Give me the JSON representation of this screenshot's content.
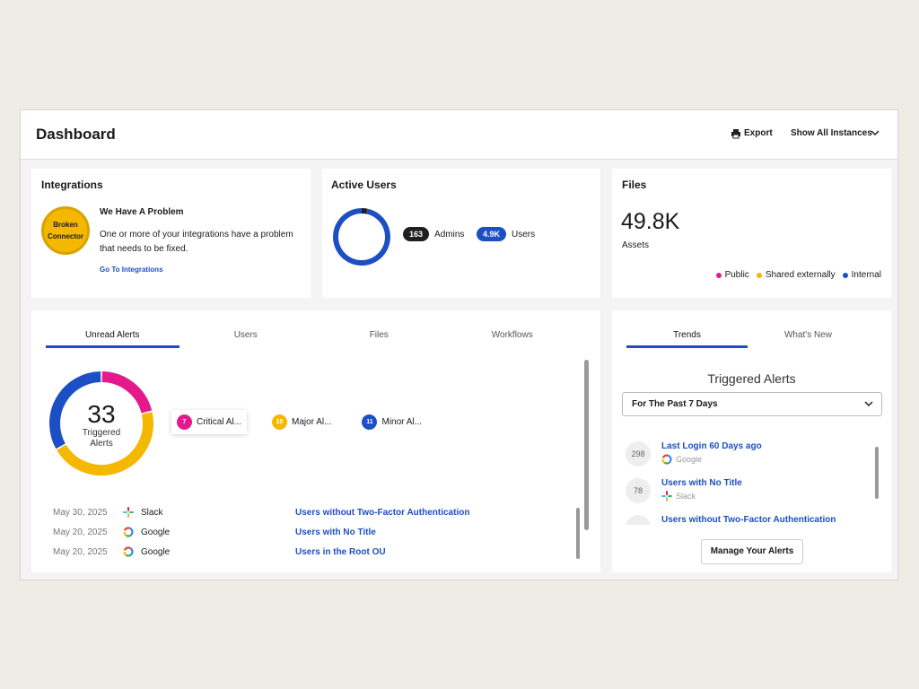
{
  "header": {
    "title": "Dashboard",
    "export": "Export",
    "instances": "Show All Instances"
  },
  "integrations": {
    "title": "Integrations",
    "badge": "Broken Connector",
    "heading": "We Have A Problem",
    "text": "One or more of your integrations have a problem that needs to be fixed.",
    "link": "Go To Integrations"
  },
  "active_users": {
    "title": "Active Users",
    "categories": [
      "Admins",
      "Users"
    ],
    "values": [
      163,
      4900
    ],
    "value_labels": [
      "163",
      "4.9K"
    ],
    "colors": [
      "#1f1f1f",
      "#1d4fc4"
    ]
  },
  "files": {
    "title": "Files",
    "total": "49.8K",
    "total_label": "Assets",
    "legend": [
      {
        "name": "Public",
        "color": "#e6198c"
      },
      {
        "name": "Shared externally",
        "color": "#f5b800"
      },
      {
        "name": "Internal",
        "color": "#1d4fc4"
      }
    ]
  },
  "alerts": {
    "tabs": [
      "Unread Alerts",
      "Users",
      "Files",
      "Workflows"
    ],
    "total": 33,
    "total_label": "Triggered Alerts",
    "categories": [
      "Critical Al...",
      "Major Al...",
      "Minor Al..."
    ],
    "values": [
      7,
      15,
      11
    ],
    "colors": [
      "#e6198c",
      "#f5b800",
      "#1d4fc4"
    ],
    "rows": [
      {
        "date": "May 30, 2025",
        "source": "Slack",
        "title": "Users without Two-Factor Authentication"
      },
      {
        "date": "May 20, 2025",
        "source": "Google",
        "title": "Users with No Title"
      },
      {
        "date": "May 20, 2025",
        "source": "Google",
        "title": "Users in the Root OU"
      }
    ]
  },
  "trends": {
    "tabs": [
      "Trends",
      "What's New"
    ],
    "title": "Triggered Alerts",
    "select": "For The Past 7 Days",
    "items": [
      {
        "count": 298,
        "title": "Last Login 60 Days ago",
        "source": "Google"
      },
      {
        "count": 78,
        "title": "Users with No Title",
        "source": "Slack"
      },
      {
        "title": "Users without Two-Factor Authentication"
      }
    ],
    "button": "Manage Your Alerts"
  }
}
